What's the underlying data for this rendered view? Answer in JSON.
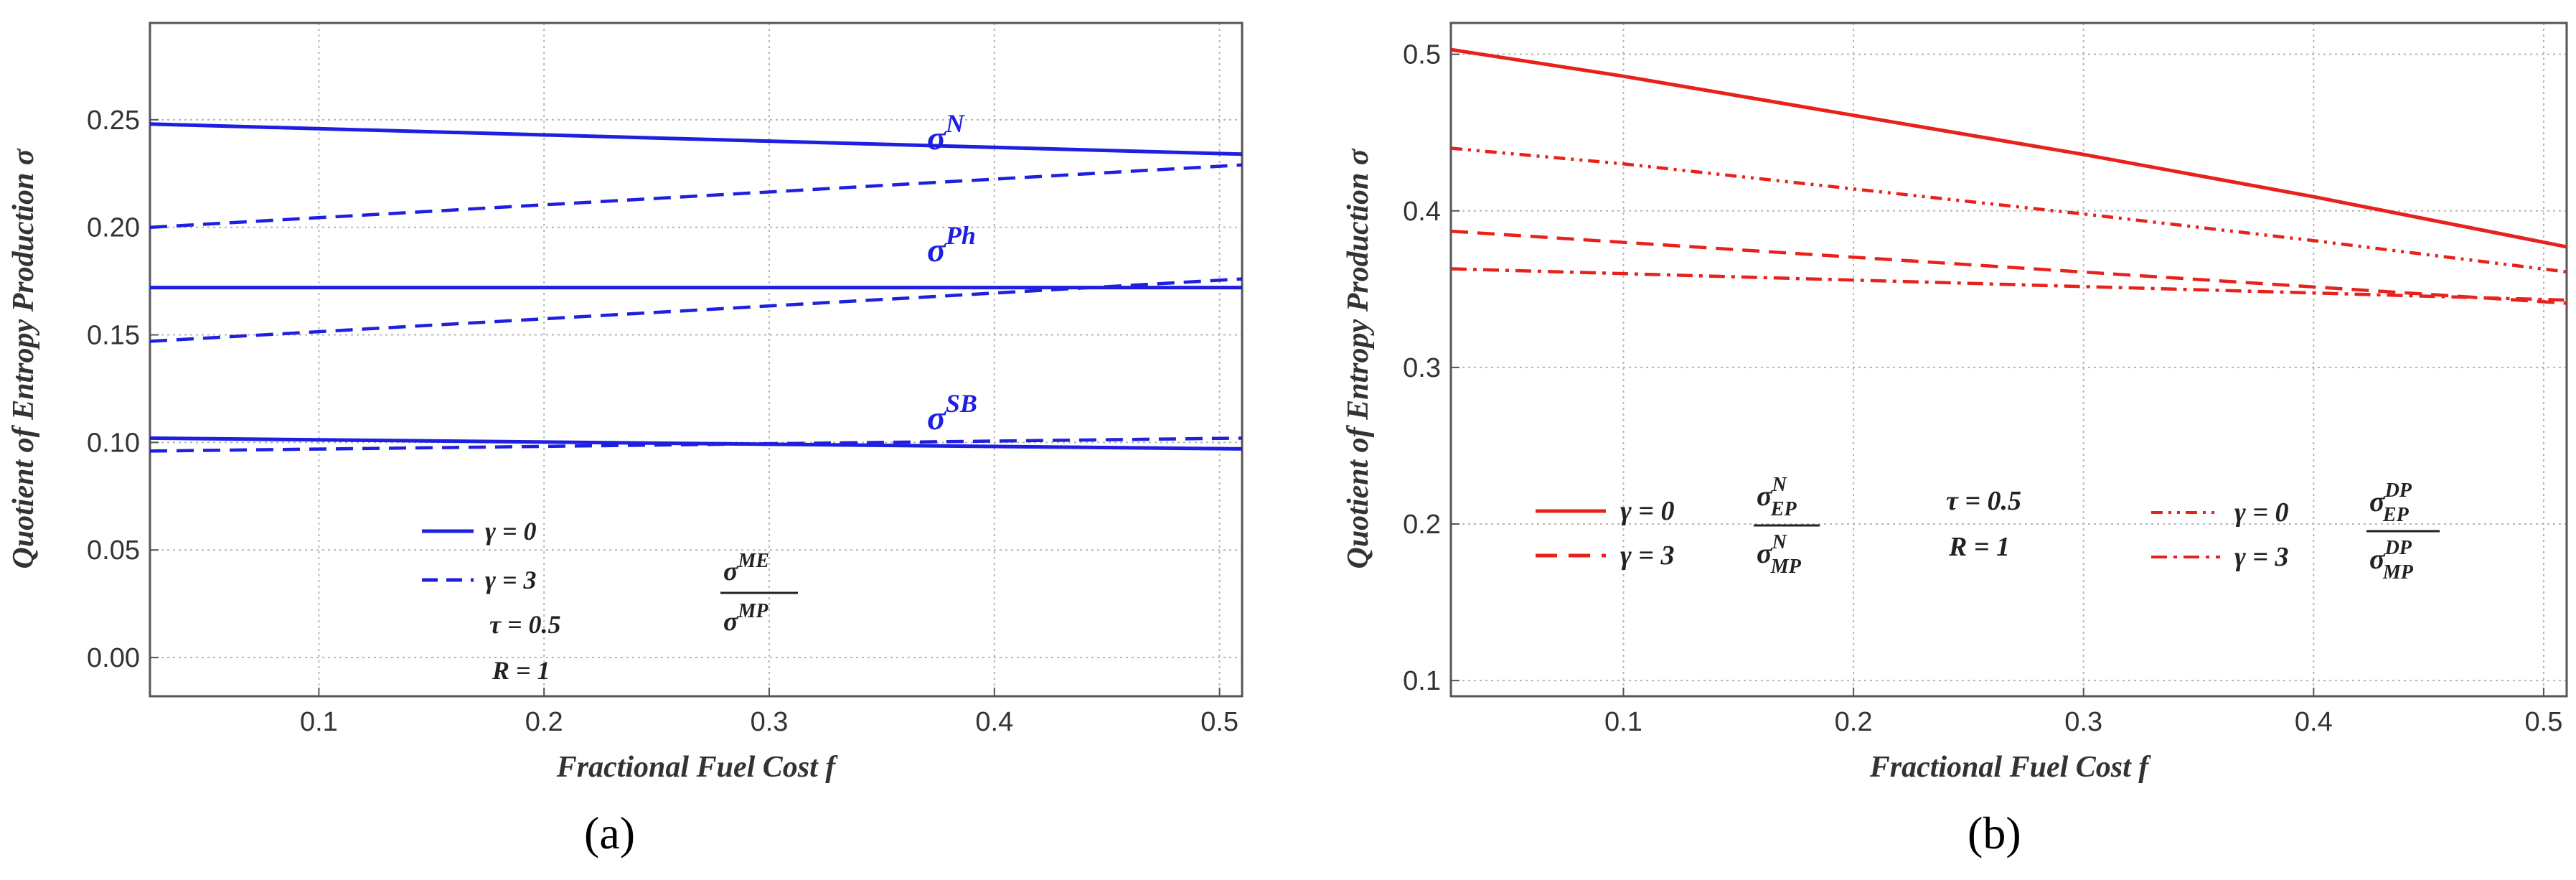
{
  "colors": {
    "left": "#1f1fe0",
    "right": "#e8221b",
    "grid": "#b5b5b5",
    "frame": "#555555"
  },
  "chart_data": [
    {
      "type": "line",
      "panel_label": "(a)",
      "xlabel": "Fractional Fuel Cost f",
      "ylabel": "Quotient of Entropy Production σ",
      "xlim": [
        0.025,
        0.51
      ],
      "ylim": [
        -0.018,
        0.295
      ],
      "xticks": [
        0.1,
        0.2,
        0.3,
        0.4,
        0.5
      ],
      "xtick_labels": [
        "0.1",
        "0.2",
        "0.3",
        "0.4",
        "0.5"
      ],
      "yticks": [
        0.0,
        0.05,
        0.1,
        0.15,
        0.2,
        0.25
      ],
      "ytick_labels": [
        "0.00",
        "0.05",
        "0.10",
        "0.15",
        "0.20",
        "0.25"
      ],
      "series": [
        {
          "name": "σ^N, γ = 0",
          "style": "solid",
          "x": [
            0.025,
            0.51
          ],
          "y": [
            0.248,
            0.234
          ]
        },
        {
          "name": "σ^N, γ = 3",
          "style": "dashed",
          "x": [
            0.025,
            0.51
          ],
          "y": [
            0.2,
            0.229
          ]
        },
        {
          "name": "σ^Ph, γ = 0",
          "style": "solid",
          "x": [
            0.025,
            0.51
          ],
          "y": [
            0.172,
            0.172
          ]
        },
        {
          "name": "σ^Ph, γ = 3",
          "style": "dashed",
          "x": [
            0.025,
            0.51
          ],
          "y": [
            0.147,
            0.176
          ]
        },
        {
          "name": "σ^SB, γ = 0",
          "style": "solid",
          "x": [
            0.025,
            0.51
          ],
          "y": [
            0.102,
            0.097
          ]
        },
        {
          "name": "σ^SB, γ = 3",
          "style": "dashed",
          "x": [
            0.025,
            0.51
          ],
          "y": [
            0.096,
            0.102
          ]
        }
      ],
      "curve_labels": [
        {
          "base": "σ",
          "sup": "N",
          "x": 0.37,
          "y": 0.252
        },
        {
          "base": "σ",
          "sup": "Ph",
          "x": 0.37,
          "y": 0.184
        },
        {
          "base": "σ",
          "sup": "SB",
          "x": 0.37,
          "y": 0.112
        }
      ],
      "legend": [
        {
          "style": "solid",
          "text": "γ = 0"
        },
        {
          "style": "dashed",
          "text": "γ = 3"
        }
      ],
      "params": [
        "τ = 0.5",
        "R = 1"
      ],
      "ratio": {
        "num_base": "σ",
        "num_sup": "ME",
        "den_base": "σ",
        "den_sup": "MP"
      }
    },
    {
      "type": "line",
      "panel_label": "(b)",
      "xlabel": "Fractional Fuel Cost f",
      "ylabel": "Quotient of Entropy Production σ",
      "xlim": [
        0.025,
        0.51
      ],
      "ylim": [
        0.09,
        0.52
      ],
      "xticks": [
        0.1,
        0.2,
        0.3,
        0.4,
        0.5
      ],
      "xtick_labels": [
        "0.1",
        "0.2",
        "0.3",
        "0.4",
        "0.5"
      ],
      "yticks": [
        0.1,
        0.2,
        0.3,
        0.4,
        0.5
      ],
      "ytick_labels": [
        "0.1",
        "0.2",
        "0.3",
        "0.4",
        "0.5"
      ],
      "series": [
        {
          "name": "σ_EP^N / σ_MP^N, γ = 0",
          "style": "solid",
          "x": [
            0.025,
            0.1,
            0.2,
            0.3,
            0.4,
            0.51
          ],
          "y": [
            0.503,
            0.486,
            0.461,
            0.436,
            0.409,
            0.377
          ]
        },
        {
          "name": "σ_EP^N / σ_MP^N, γ = 3",
          "style": "dashed",
          "x": [
            0.025,
            0.51
          ],
          "y": [
            0.387,
            0.341
          ]
        },
        {
          "name": "σ_EP^DP / σ_MP^DP, γ = 0",
          "style": "dashdotdot",
          "x": [
            0.025,
            0.1,
            0.2,
            0.3,
            0.4,
            0.51
          ],
          "y": [
            0.44,
            0.43,
            0.414,
            0.398,
            0.381,
            0.361
          ]
        },
        {
          "name": "σ_EP^DP / σ_MP^DP, γ = 3",
          "style": "dashdot",
          "x": [
            0.025,
            0.51
          ],
          "y": [
            0.363,
            0.343
          ]
        }
      ],
      "legend_left": [
        {
          "style": "solid",
          "text": "γ = 0"
        },
        {
          "style": "dashed",
          "text": "γ = 3"
        }
      ],
      "ratio_left": {
        "num_base": "σ",
        "num_sup": "N",
        "num_sub": "EP",
        "den_base": "σ",
        "den_sup": "N",
        "den_sub": "MP"
      },
      "params": [
        "τ = 0.5",
        "R = 1"
      ],
      "legend_right": [
        {
          "style": "dashdotdot",
          "text": "γ = 0"
        },
        {
          "style": "dashdot",
          "text": "γ = 3"
        }
      ],
      "ratio_right": {
        "num_base": "σ",
        "num_sup": "DP",
        "num_sub": "EP",
        "den_base": "σ",
        "den_sup": "DP",
        "den_sub": "MP"
      }
    }
  ]
}
